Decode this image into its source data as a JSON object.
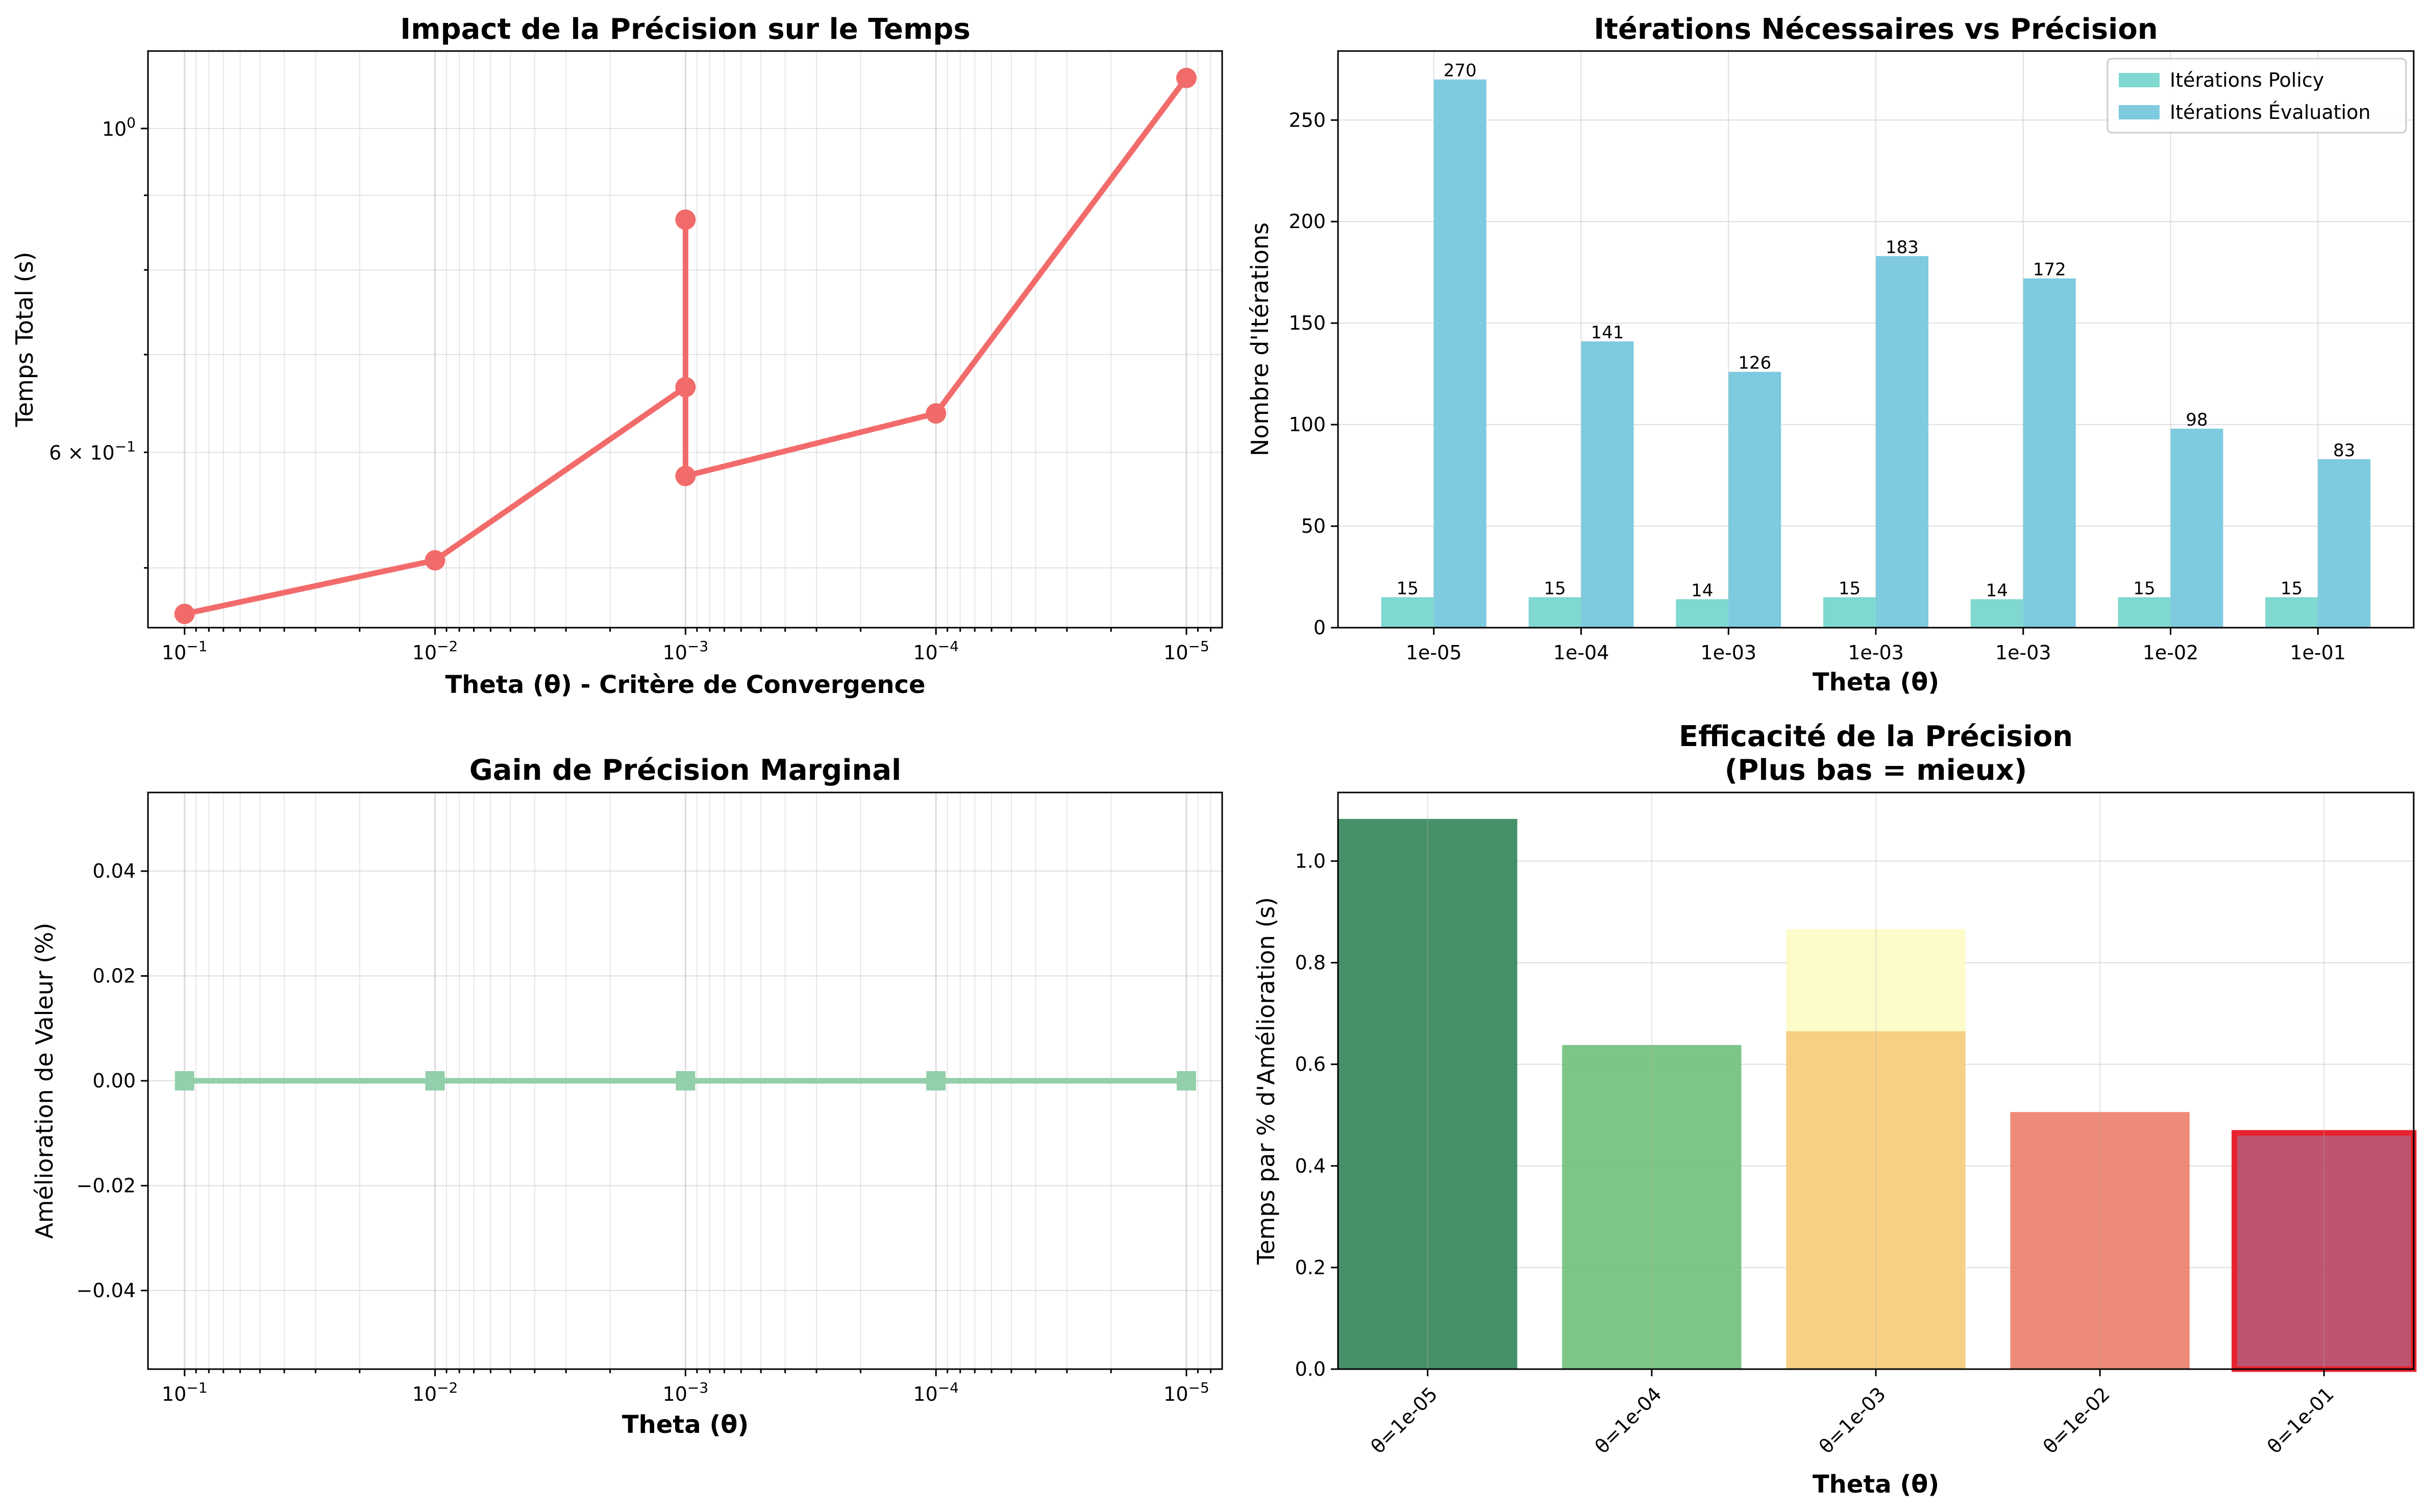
{
  "chart_data": [
    {
      "type": "line",
      "title": "Impact de la Précision sur le Temps",
      "xlabel": "Theta (θ) - Critère de Convergence",
      "ylabel": "Temps Total (s)",
      "xscale": "log",
      "x_inverted": true,
      "yscale": "log",
      "xlim": [
        0.14,
        7.2e-06
      ],
      "ylim": [
        0.455,
        1.13
      ],
      "xticks": [
        {
          "base": "10",
          "exp": "−1"
        },
        {
          "base": "10",
          "exp": "−2"
        },
        {
          "base": "10",
          "exp": "−3"
        },
        {
          "base": "10",
          "exp": "−4"
        },
        {
          "base": "10",
          "exp": "−5"
        }
      ],
      "xtick_values": [
        0.1,
        0.01,
        0.001,
        0.0001,
        1e-05
      ],
      "yticks": [
        {
          "value": 1.0,
          "base": "10",
          "exp": "0",
          "prefix": ""
        },
        {
          "value": 0.6,
          "base": "10",
          "exp": "−1",
          "prefix": "6 × "
        }
      ],
      "x": [
        0.1,
        0.01,
        0.001,
        0.001,
        0.001,
        0.0001,
        1e-05
      ],
      "y": [
        0.465,
        0.506,
        0.665,
        0.866,
        0.578,
        0.638,
        1.083
      ],
      "color": "#f26b6b",
      "grid": true
    },
    {
      "type": "bar",
      "title": "Itérations Nécessaires vs Précision",
      "xlabel": "Theta (θ)",
      "ylabel": "Nombre d'Itérations",
      "categories": [
        "1e-05",
        "1e-04",
        "1e-03",
        "1e-03",
        "1e-03",
        "1e-02",
        "1e-01"
      ],
      "series": [
        {
          "name": "Itérations Policy",
          "values": [
            15,
            15,
            14,
            15,
            14,
            15,
            15
          ],
          "labels": [
            "15",
            "15",
            "14",
            "15",
            "14",
            "15",
            "15"
          ],
          "color": "#7fd9d0"
        },
        {
          "name": "Itérations Évaluation",
          "values": [
            270,
            141,
            126,
            183,
            172,
            98,
            83
          ],
          "labels": [
            "270",
            "141",
            "126",
            "183",
            "172",
            "98",
            "83"
          ],
          "color": "#7ecadf"
        }
      ],
      "ylim": [
        0,
        284
      ],
      "yticks": [
        0,
        50,
        100,
        150,
        200,
        250
      ],
      "ytick_labels": [
        "0",
        "50",
        "100",
        "150",
        "200",
        "250"
      ],
      "legend": "top-right",
      "grid": true
    },
    {
      "type": "line",
      "title": "Gain de Précision Marginal",
      "xlabel": "Theta (θ)",
      "ylabel": "Amélioration de Valeur (%)",
      "xscale": "log",
      "x_inverted": true,
      "xlim": [
        0.14,
        7.2e-06
      ],
      "ylim": [
        -0.055,
        0.055
      ],
      "xticks": [
        {
          "base": "10",
          "exp": "−1"
        },
        {
          "base": "10",
          "exp": "−2"
        },
        {
          "base": "10",
          "exp": "−3"
        },
        {
          "base": "10",
          "exp": "−4"
        },
        {
          "base": "10",
          "exp": "−5"
        }
      ],
      "xtick_values": [
        0.1,
        0.01,
        0.001,
        0.0001,
        1e-05
      ],
      "yticks": [
        0.04,
        0.02,
        0.0,
        -0.02,
        -0.04
      ],
      "ytick_labels": [
        "0.04",
        "0.02",
        "0.00",
        "−0.02",
        "−0.04"
      ],
      "x": [
        0.1,
        0.01,
        0.001,
        0.0001,
        1e-05
      ],
      "y": [
        0,
        0,
        0,
        0,
        0
      ],
      "color": "#93cfaa",
      "grid": true
    },
    {
      "type": "bar",
      "title_lines": [
        "Efficacité de la Précision",
        "(Plus bas = mieux)"
      ],
      "xlabel": "Theta (θ)",
      "ylabel": "Temps par % d'Amélioration (s)",
      "categories": [
        "θ=1e-05",
        "θ=1e-04",
        "θ=1e-03",
        "θ=1e-02",
        "θ=1e-01"
      ],
      "bars": [
        {
          "slot": 0,
          "value": 1.083,
          "color": "#2e8254"
        },
        {
          "slot": 1,
          "value": 0.638,
          "color": "#6cbe77"
        },
        {
          "slot": 2,
          "value": 0.866,
          "color": "#fefbc4"
        },
        {
          "slot": 2,
          "value": 0.665,
          "color": "#f6c97b"
        },
        {
          "slot": 3,
          "value": 0.506,
          "color": "#ec7a64"
        },
        {
          "slot": 4,
          "value": 0.465,
          "color": "#b43c5c",
          "highlight": true
        }
      ],
      "highlight_color": "#e8222e",
      "ylim": [
        0,
        1.135
      ],
      "yticks": [
        0.0,
        0.2,
        0.4,
        0.6,
        0.8,
        1.0
      ],
      "ytick_labels": [
        "0.0",
        "0.2",
        "0.4",
        "0.6",
        "0.8",
        "1.0"
      ],
      "grid": true
    }
  ]
}
